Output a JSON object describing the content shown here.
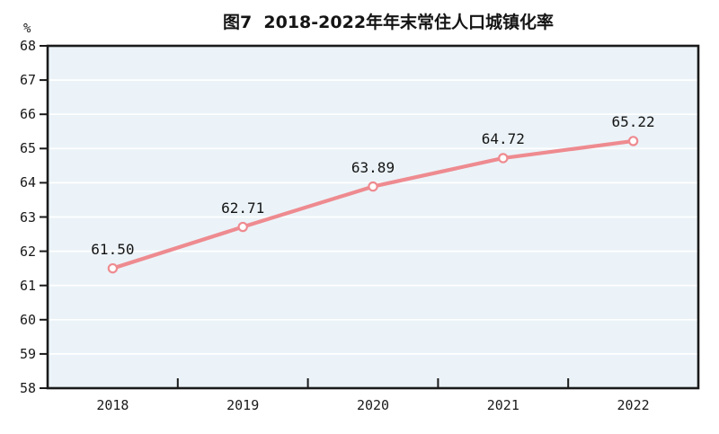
{
  "chart": {
    "title": "图7  2018-2022年年末常住人口城镇化率",
    "y_unit": "%",
    "colors": {
      "line": "#EE8B90",
      "marker_fill": "#FFFFFF",
      "plot_bg": "#EBF3F8",
      "grid": "#FFFFFF",
      "axis": "#1A1A1A",
      "text": "#1A1A1A"
    }
  },
  "chart_data": {
    "type": "line",
    "title": "图7  2018-2022年年末常住人口城镇化率",
    "categories": [
      "2018",
      "2019",
      "2020",
      "2021",
      "2022"
    ],
    "values": [
      61.5,
      62.71,
      63.89,
      64.72,
      65.22
    ],
    "value_labels": [
      "61.50",
      "62.71",
      "63.89",
      "64.72",
      "65.22"
    ],
    "xlabel": "",
    "ylabel": "%",
    "ylim": [
      58,
      68
    ],
    "ytick_labels": [
      "58",
      "59",
      "60",
      "61",
      "62",
      "63",
      "64",
      "65",
      "66",
      "67",
      "68"
    ],
    "grid": true,
    "grid_orientation": "horizontal",
    "legend": "none",
    "marker": "open-circle",
    "data_labels_shown": true
  }
}
